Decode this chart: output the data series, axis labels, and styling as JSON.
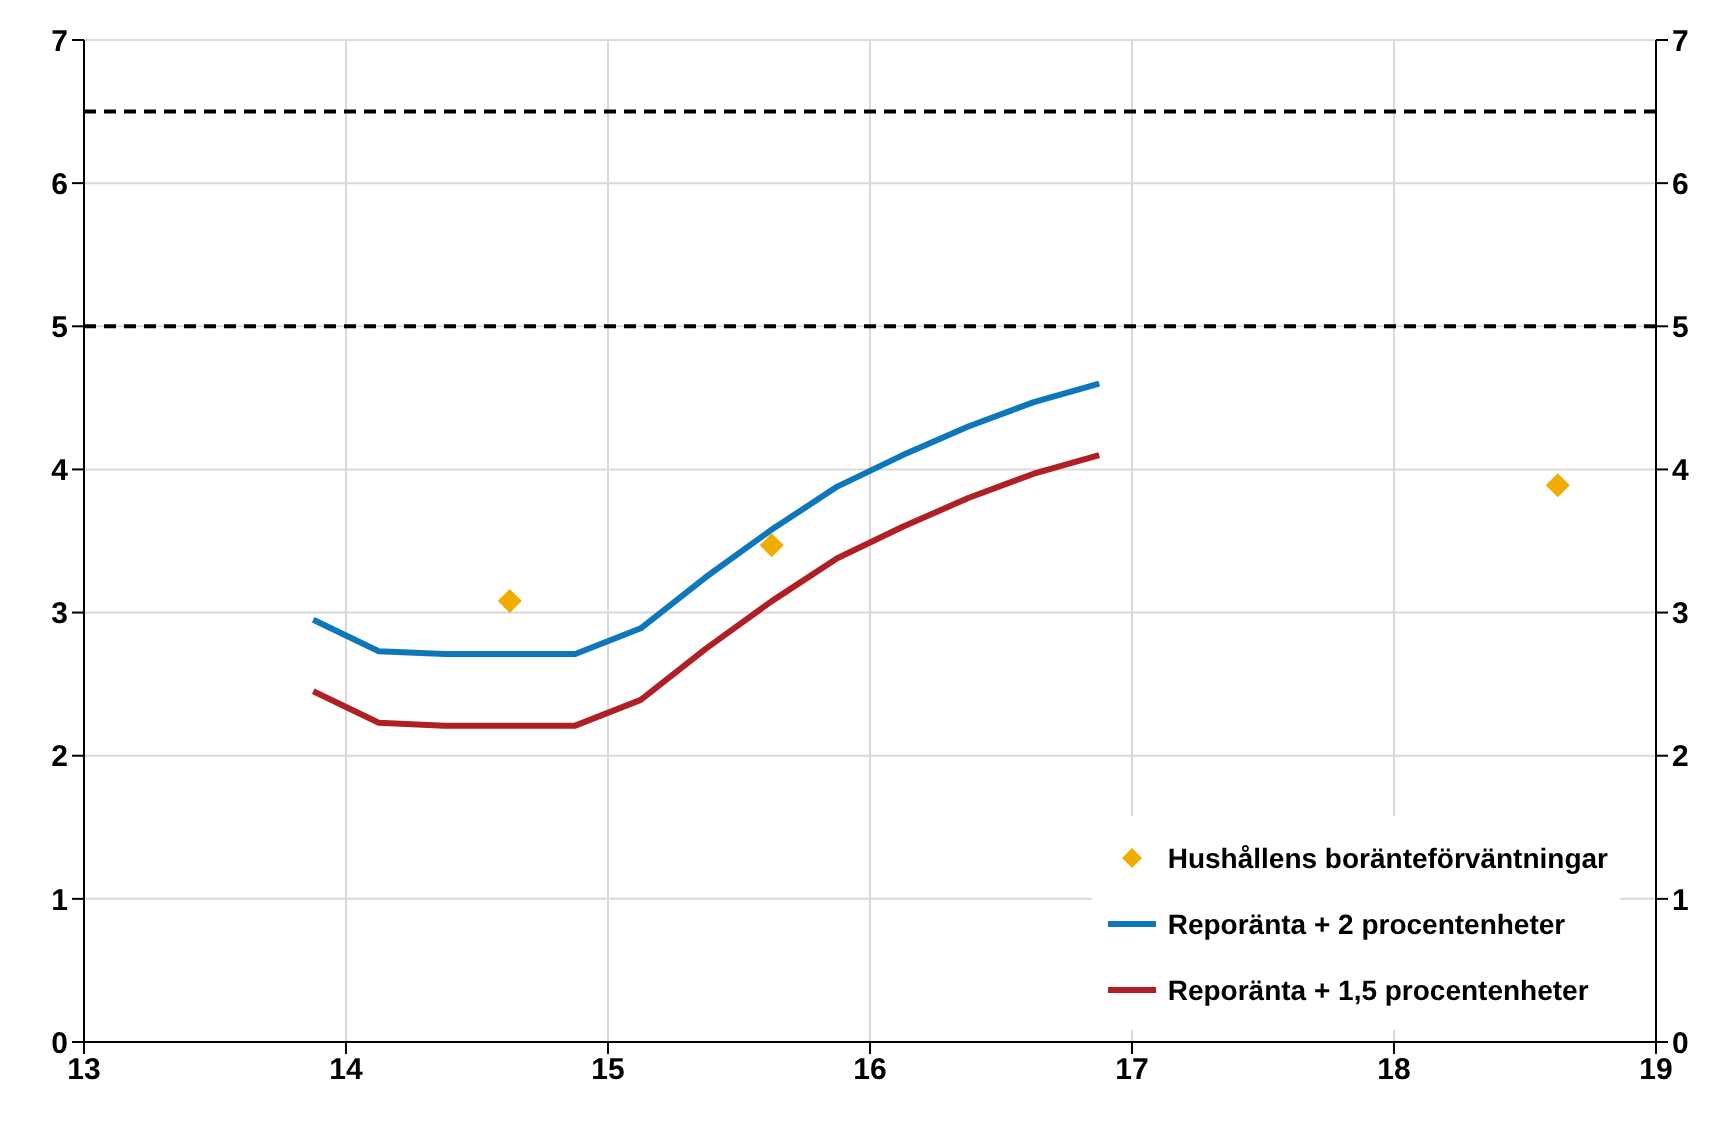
{
  "chart_data": {
    "type": "line",
    "xlim": [
      13,
      19
    ],
    "xticks": [
      13,
      14,
      15,
      16,
      17,
      18,
      19
    ],
    "ylim": [
      0,
      7
    ],
    "yticks": [
      0,
      1,
      2,
      3,
      4,
      5,
      6,
      7
    ],
    "y2lim": [
      0,
      7
    ],
    "y2ticks": [
      0,
      1,
      2,
      3,
      4,
      5,
      6,
      7
    ],
    "grid": true,
    "legend": "bottom right",
    "line_style": "solid",
    "series": [
      {
        "name": "Hushållens boränteförväntningar",
        "type": "scatter",
        "marker": "diamond",
        "color": "#f0ad00",
        "x": [
          14.625,
          15.625,
          18.625
        ],
        "values": [
          3.08,
          3.47,
          3.89
        ]
      },
      {
        "name": "Reporänta + 2 procentenheter",
        "type": "line",
        "marker": "none",
        "color": "#0e77bc",
        "x": [
          13.875,
          14.125,
          14.375,
          14.625,
          14.875,
          15.125,
          15.375,
          15.625,
          15.875,
          16.125,
          16.375,
          16.625,
          16.875
        ],
        "values": [
          2.95,
          2.73,
          2.71,
          2.71,
          2.71,
          2.89,
          3.25,
          3.58,
          3.88,
          4.1,
          4.3,
          4.47,
          4.6
        ]
      },
      {
        "name": "Reporänta + 1,5 procentenheter",
        "type": "line",
        "marker": "none",
        "color": "#b01f24",
        "x": [
          13.875,
          14.125,
          14.375,
          14.625,
          14.875,
          15.125,
          15.375,
          15.625,
          15.875,
          16.125,
          16.375,
          16.625,
          16.875
        ],
        "values": [
          2.45,
          2.23,
          2.21,
          2.21,
          2.21,
          2.39,
          2.75,
          3.08,
          3.38,
          3.6,
          3.8,
          3.97,
          4.1
        ]
      }
    ],
    "ref_lines": [
      {
        "axis": "y",
        "value": 5,
        "color": "#000000",
        "line_style": "dashed"
      },
      {
        "axis": "y",
        "value": 6.5,
        "color": "#000000",
        "line_style": "dashed"
      }
    ]
  }
}
